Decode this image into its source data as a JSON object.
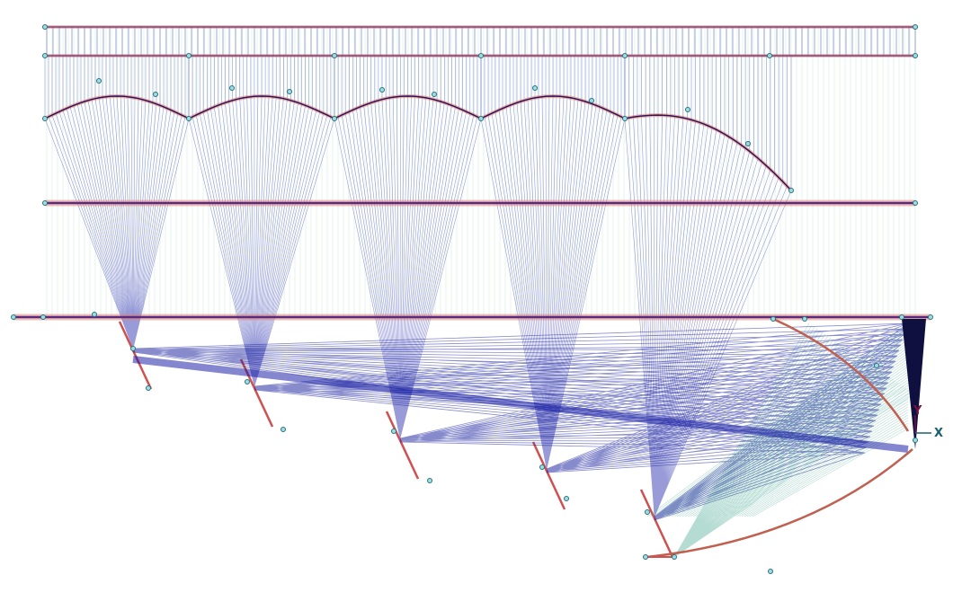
{
  "axis": {
    "x": "X",
    "y": "Y"
  }
}
